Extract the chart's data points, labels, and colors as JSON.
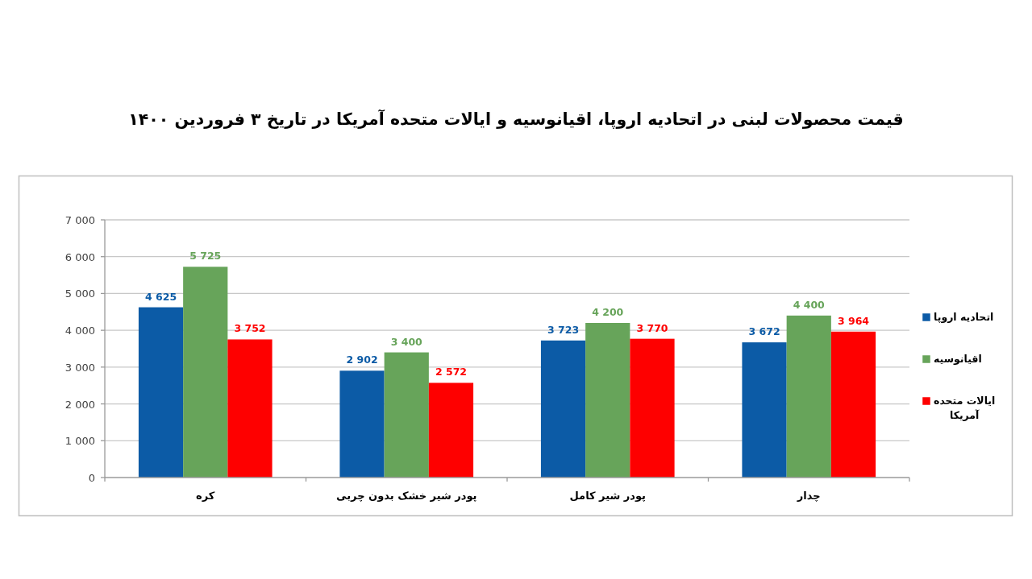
{
  "chart_data": {
    "type": "bar",
    "title": "قیمت محصولات لبنی در اتحادیه اروپا، اقیانوسیه و ایالات متحده آمریکا در تاریخ ۳ فروردین ۱۴۰۰",
    "categories": [
      "کره",
      "پودر شیر خشک بدون چربی",
      "پودر شیر کامل",
      "چدار"
    ],
    "series": [
      {
        "name": "اتحادیه اروپا",
        "color": "#0c5ba6",
        "values": [
          4625,
          2902,
          3723,
          3672
        ],
        "value_labels": [
          "4 625",
          "2 902",
          "3 723",
          "3 672"
        ]
      },
      {
        "name": "اقیانوسیه",
        "color": "#67a45a",
        "values": [
          5725,
          3400,
          4200,
          4400
        ],
        "value_labels": [
          "5 725",
          "3 400",
          "4 200",
          "4 400"
        ]
      },
      {
        "name": "ایالات متحده آمریکا",
        "color": "#fe0000",
        "values": [
          3752,
          2572,
          3770,
          3964
        ],
        "value_labels": [
          "3 752",
          "2 572",
          "3 770",
          "3 964"
        ]
      }
    ],
    "ylim": [
      0,
      7000
    ],
    "yticks": [
      0,
      {
        "value": 1000,
        "label": "1 000"
      },
      {
        "value": 2000,
        "label": "2 000"
      },
      {
        "value": 3000,
        "label": "3 000"
      },
      {
        "value": 4000,
        "label": "4 000"
      },
      {
        "value": 5000,
        "label": "5 000"
      },
      {
        "value": 6000,
        "label": "6 000"
      },
      {
        "value": 7000,
        "label": "7 000"
      }
    ],
    "grid": "y",
    "legend": "right"
  }
}
